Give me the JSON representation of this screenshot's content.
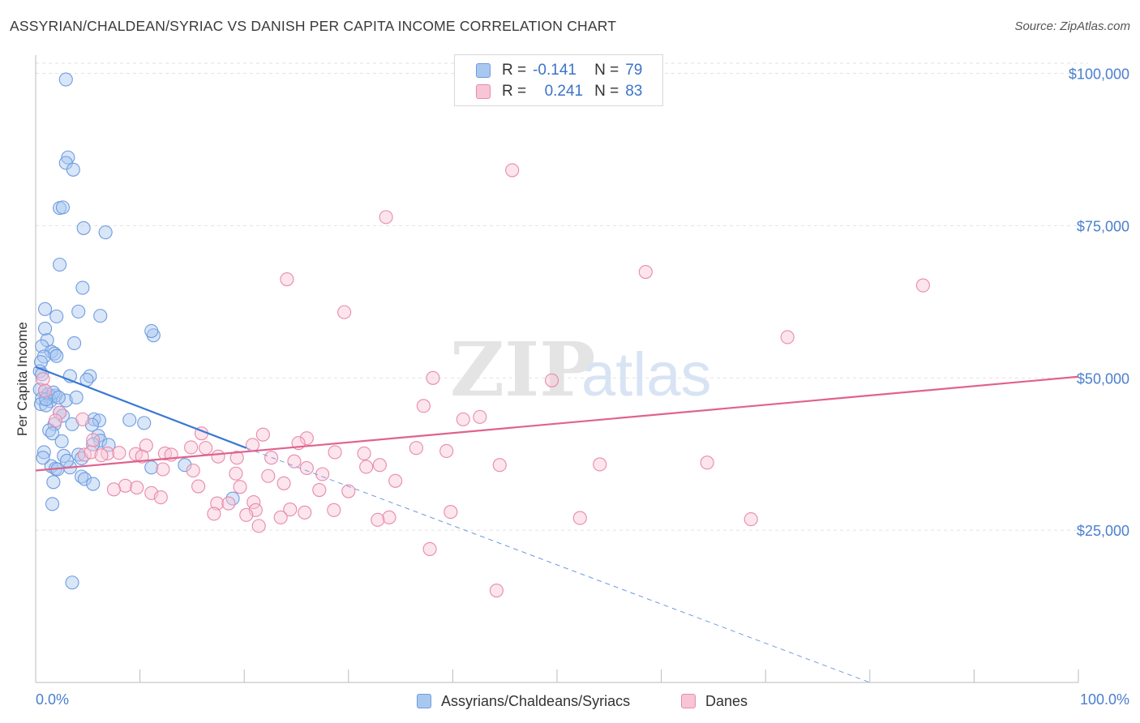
{
  "header": {
    "title": "ASSYRIAN/CHALDEAN/SYRIAC VS DANISH PER CAPITA INCOME CORRELATION CHART",
    "source": "Source: ZipAtlas.com"
  },
  "watermark": {
    "zip": "ZIP",
    "atlas": "atlas"
  },
  "legend": {
    "rows": [
      {
        "r_label": "R =",
        "r_value": "-0.141",
        "n_label": "N =",
        "n_value": "79",
        "color": "#a9c8f0",
        "border": "#6f9be0"
      },
      {
        "r_label": "R =",
        "r_value": "0.241",
        "n_label": "N =",
        "n_value": "83",
        "color": "#f8c5d6",
        "border": "#e88aab"
      }
    ]
  },
  "bottom_legend": [
    {
      "label": "Assyrians/Chaldeans/Syriacs",
      "color": "#a9c8f0",
      "border": "#6f9be0"
    },
    {
      "label": "Danes",
      "color": "#f8c5d6",
      "border": "#e88aab"
    }
  ],
  "chart_data": {
    "type": "scatter",
    "title": "ASSYRIAN/CHALDEAN/SYRIAC VS DANISH PER CAPITA INCOME CORRELATION CHART",
    "xlabel": "",
    "ylabel": "Per Capita Income",
    "xlim": [
      0,
      100
    ],
    "ylim": [
      0,
      103000
    ],
    "x_tick_labels": [
      "0.0%",
      "100.0%"
    ],
    "y_ticks": [
      25000,
      50000,
      75000,
      100000
    ],
    "y_tick_labels": [
      "$25,000",
      "$50,000",
      "$75,000",
      "$100,000"
    ],
    "grid": true,
    "legend_position": "top-center",
    "series": [
      {
        "name": "Assyrians/Chaldeans/Syriacs",
        "color": "#6f9be0",
        "fill": "#a9c8f0",
        "r": -0.141,
        "n": 79,
        "trend": {
          "x0": 0,
          "y0": 51800,
          "x1": 20.2,
          "y1": 38500,
          "dash_x1": 80,
          "dash_y1": 0
        },
        "points": [
          [
            2.9,
            99000
          ],
          [
            3.1,
            86200
          ],
          [
            2.9,
            85300
          ],
          [
            3.6,
            84200
          ],
          [
            2.3,
            77900
          ],
          [
            2.6,
            78000
          ],
          [
            4.6,
            74600
          ],
          [
            6.7,
            73900
          ],
          [
            2.3,
            68600
          ],
          [
            4.5,
            64800
          ],
          [
            0.9,
            61300
          ],
          [
            2.0,
            60100
          ],
          [
            4.1,
            60900
          ],
          [
            6.2,
            60200
          ],
          [
            0.9,
            58100
          ],
          [
            1.1,
            56200
          ],
          [
            11.3,
            57000
          ],
          [
            11.1,
            57700
          ],
          [
            3.7,
            55700
          ],
          [
            0.6,
            55200
          ],
          [
            1.5,
            54300
          ],
          [
            1.8,
            54000
          ],
          [
            2.0,
            53600
          ],
          [
            0.8,
            53500
          ],
          [
            0.5,
            52600
          ],
          [
            0.4,
            51100
          ],
          [
            0.6,
            50600
          ],
          [
            3.3,
            50300
          ],
          [
            5.2,
            50300
          ],
          [
            4.9,
            49700
          ],
          [
            0.4,
            48100
          ],
          [
            0.9,
            47900
          ],
          [
            1.2,
            47300
          ],
          [
            1.5,
            46900
          ],
          [
            1.9,
            47100
          ],
          [
            0.6,
            46600
          ],
          [
            1.4,
            46200
          ],
          [
            2.9,
            46300
          ],
          [
            3.9,
            46800
          ],
          [
            0.5,
            45700
          ],
          [
            1.0,
            45500
          ],
          [
            2.3,
            44300
          ],
          [
            2.6,
            43800
          ],
          [
            5.6,
            43200
          ],
          [
            6.1,
            43000
          ],
          [
            9.0,
            43100
          ],
          [
            5.4,
            42300
          ],
          [
            10.4,
            42600
          ],
          [
            1.8,
            42400
          ],
          [
            3.5,
            42400
          ],
          [
            1.3,
            41400
          ],
          [
            1.6,
            40900
          ],
          [
            6.0,
            40500
          ],
          [
            2.5,
            39600
          ],
          [
            6.2,
            39700
          ],
          [
            5.5,
            39100
          ],
          [
            7.0,
            39000
          ],
          [
            0.8,
            37800
          ],
          [
            2.7,
            37200
          ],
          [
            4.1,
            37400
          ],
          [
            4.4,
            36800
          ],
          [
            1.5,
            35500
          ],
          [
            3.3,
            35300
          ],
          [
            1.9,
            35100
          ],
          [
            11.1,
            35300
          ],
          [
            14.3,
            35700
          ],
          [
            2.1,
            35000
          ],
          [
            0.7,
            36900
          ],
          [
            3.0,
            36400
          ],
          [
            4.4,
            33800
          ],
          [
            4.7,
            33400
          ],
          [
            5.5,
            32600
          ],
          [
            1.7,
            32900
          ],
          [
            18.9,
            30200
          ],
          [
            1.6,
            29300
          ],
          [
            3.5,
            16400
          ],
          [
            1.0,
            46500
          ],
          [
            1.7,
            47600
          ],
          [
            2.2,
            46800
          ]
        ]
      },
      {
        "name": "Danes",
        "color": "#e88aab",
        "fill": "#f8c5d6",
        "r": 0.241,
        "n": 83,
        "trend": {
          "x0": 0,
          "y0": 34800,
          "x1": 100,
          "y1": 50200
        },
        "points": [
          [
            45.7,
            84100
          ],
          [
            33.6,
            76400
          ],
          [
            58.5,
            67400
          ],
          [
            24.1,
            66200
          ],
          [
            85.1,
            65200
          ],
          [
            29.6,
            60800
          ],
          [
            72.1,
            56700
          ],
          [
            0.7,
            49800
          ],
          [
            0.9,
            47900
          ],
          [
            38.1,
            50000
          ],
          [
            49.5,
            49600
          ],
          [
            37.2,
            45400
          ],
          [
            42.6,
            43600
          ],
          [
            41.0,
            43200
          ],
          [
            2.3,
            44300
          ],
          [
            4.5,
            43200
          ],
          [
            1.9,
            43000
          ],
          [
            26.0,
            40100
          ],
          [
            15.9,
            40900
          ],
          [
            21.8,
            40700
          ],
          [
            25.2,
            39300
          ],
          [
            5.5,
            39800
          ],
          [
            10.6,
            38900
          ],
          [
            14.9,
            38600
          ],
          [
            16.3,
            38500
          ],
          [
            20.8,
            39000
          ],
          [
            36.5,
            38500
          ],
          [
            39.4,
            38000
          ],
          [
            28.7,
            37800
          ],
          [
            31.5,
            37600
          ],
          [
            6.9,
            37600
          ],
          [
            12.4,
            37600
          ],
          [
            13.0,
            37400
          ],
          [
            17.5,
            37100
          ],
          [
            19.3,
            36900
          ],
          [
            4.7,
            37400
          ],
          [
            5.3,
            37800
          ],
          [
            6.3,
            37300
          ],
          [
            8.0,
            37700
          ],
          [
            9.6,
            37500
          ],
          [
            10.2,
            37100
          ],
          [
            22.6,
            36900
          ],
          [
            24.8,
            36300
          ],
          [
            33.0,
            35700
          ],
          [
            31.7,
            35400
          ],
          [
            26.0,
            35200
          ],
          [
            44.5,
            35700
          ],
          [
            54.1,
            35800
          ],
          [
            64.4,
            36100
          ],
          [
            27.5,
            34200
          ],
          [
            19.2,
            34300
          ],
          [
            22.3,
            33900
          ],
          [
            15.1,
            34800
          ],
          [
            12.2,
            35000
          ],
          [
            34.5,
            33100
          ],
          [
            23.8,
            32700
          ],
          [
            8.6,
            32300
          ],
          [
            9.7,
            32000
          ],
          [
            7.5,
            31700
          ],
          [
            15.6,
            32200
          ],
          [
            19.6,
            32100
          ],
          [
            27.2,
            31600
          ],
          [
            30.0,
            31400
          ],
          [
            11.1,
            31100
          ],
          [
            12.0,
            30400
          ],
          [
            17.4,
            29400
          ],
          [
            18.5,
            29400
          ],
          [
            20.9,
            29600
          ],
          [
            21.1,
            28300
          ],
          [
            24.4,
            28400
          ],
          [
            25.8,
            27900
          ],
          [
            28.6,
            28300
          ],
          [
            39.8,
            28000
          ],
          [
            17.1,
            27700
          ],
          [
            20.2,
            27500
          ],
          [
            23.5,
            27100
          ],
          [
            33.9,
            27100
          ],
          [
            52.2,
            27000
          ],
          [
            68.6,
            26800
          ],
          [
            32.8,
            26700
          ],
          [
            21.4,
            25700
          ],
          [
            37.8,
            21900
          ],
          [
            44.2,
            15100
          ]
        ]
      }
    ]
  }
}
